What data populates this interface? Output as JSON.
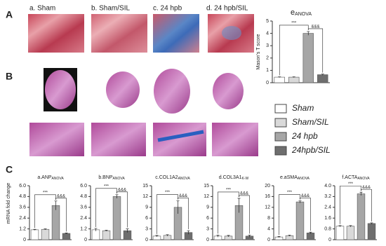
{
  "panel_labels": [
    "A",
    "B",
    "C"
  ],
  "image_labels": [
    "a. Sham",
    "b. Sham/SIL",
    "c. 24 hpb",
    "d. 24 hpb/SIL"
  ],
  "legend": [
    {
      "label": "Sham",
      "color": "#ffffff"
    },
    {
      "label": "Sham/SIL",
      "color": "#d9d9d9"
    },
    {
      "label": "24 hpb",
      "color": "#a6a6a6"
    },
    {
      "label": "24hpb/SIL",
      "color": "#6e6e6e"
    }
  ],
  "mrna_ylabel": "mRNA fold change",
  "chart_data": [
    {
      "type": "bar",
      "title": "e",
      "title_sub": "ANOVA",
      "ylabel": "Mason's T score",
      "categories": [
        null,
        null,
        null,
        null
      ],
      "values": [
        0.45,
        0.45,
        4.0,
        0.65
      ],
      "errors": [
        0.03,
        0.03,
        0.15,
        0.05
      ],
      "colors": [
        "#ffffff",
        "#d9d9d9",
        "#a6a6a6",
        "#6e6e6e"
      ],
      "ylim": [
        0,
        5
      ],
      "yticks": [
        0,
        1,
        2,
        3,
        4,
        5
      ],
      "annotations": [
        "***",
        "&&&"
      ]
    },
    {
      "type": "bar",
      "title": "a.ANP",
      "title_sub": "ANOVA",
      "categories": [
        null,
        null,
        null,
        null
      ],
      "values": [
        1.1,
        1.15,
        3.8,
        0.7
      ],
      "errors": [
        0.05,
        0.05,
        0.5,
        0.05
      ],
      "colors": [
        "#ffffff",
        "#d9d9d9",
        "#a6a6a6",
        "#6e6e6e"
      ],
      "ylim": [
        0,
        6
      ],
      "yticks": [
        0,
        1.2,
        2.4,
        3.6,
        4.8,
        {
          "value": 6,
          "label": "6.0"
        }
      ],
      "annotations": [
        "***",
        "&&&"
      ]
    },
    {
      "type": "bar",
      "title": "b.BNP",
      "title_sub": "ANOVA",
      "categories": [
        null,
        null,
        null,
        null
      ],
      "values": [
        1.1,
        1.0,
        4.8,
        1.0
      ],
      "errors": [
        0.15,
        0.05,
        0.2,
        0.2
      ],
      "colors": [
        "#ffffff",
        "#d9d9d9",
        "#a6a6a6",
        "#6e6e6e"
      ],
      "ylim": [
        0,
        6
      ],
      "yticks": [
        0,
        1.2,
        2.4,
        3.6,
        4.8,
        {
          "value": 6,
          "label": "6.0"
        }
      ],
      "annotations": [
        "***",
        "&&&"
      ]
    },
    {
      "type": "bar",
      "title": "c.COL1A2",
      "title_sub": "ANOVA",
      "categories": [
        null,
        null,
        null,
        null
      ],
      "values": [
        1.0,
        1.2,
        9.0,
        2.0
      ],
      "errors": [
        0.2,
        0.2,
        1.8,
        0.5
      ],
      "colors": [
        "#ffffff",
        "#d9d9d9",
        "#a6a6a6",
        "#6e6e6e"
      ],
      "ylim": [
        0,
        15
      ],
      "yticks": [
        0,
        3,
        6,
        9,
        12,
        15
      ],
      "annotations": [
        "***",
        "&&&"
      ]
    },
    {
      "type": "bar",
      "title": "d.COL3A1",
      "title_sub": "K-W",
      "categories": [
        null,
        null,
        null,
        null
      ],
      "values": [
        1.0,
        1.0,
        9.5,
        1.0
      ],
      "errors": [
        0.3,
        0.2,
        2.0,
        0.3
      ],
      "colors": [
        "#ffffff",
        "#d9d9d9",
        "#a6a6a6",
        "#6e6e6e"
      ],
      "ylim": [
        0,
        15
      ],
      "yticks": [
        0,
        3,
        6,
        9,
        12,
        15
      ],
      "annotations": [
        "***",
        "&&&"
      ]
    },
    {
      "type": "bar",
      "title": "e.aSMA",
      "title_sub": "ANOVA",
      "categories": [
        null,
        null,
        null,
        null
      ],
      "values": [
        1.0,
        1.5,
        14.0,
        2.5
      ],
      "errors": [
        0.2,
        0.2,
        0.4,
        0.3
      ],
      "colors": [
        "#ffffff",
        "#d9d9d9",
        "#a6a6a6",
        "#6e6e6e"
      ],
      "ylim": [
        0,
        20
      ],
      "yticks": [
        0,
        4,
        8,
        12,
        16,
        20
      ],
      "annotations": [
        "***",
        "&&&"
      ]
    },
    {
      "type": "bar",
      "title": "f.ACTA",
      "title_sub": "ANOVA",
      "categories": [
        null,
        null,
        null,
        null
      ],
      "values": [
        1.0,
        1.0,
        3.4,
        1.2
      ],
      "errors": [
        0.05,
        0.05,
        0.12,
        0.05
      ],
      "colors": [
        "#ffffff",
        "#d9d9d9",
        "#a6a6a6",
        "#6e6e6e"
      ],
      "ylim": [
        0,
        4
      ],
      "yticks": [
        0,
        0.8,
        1.6,
        2.4,
        3.2,
        {
          "value": 4,
          "label": "4.0"
        }
      ],
      "annotations": [
        "***",
        "&&&"
      ]
    }
  ]
}
